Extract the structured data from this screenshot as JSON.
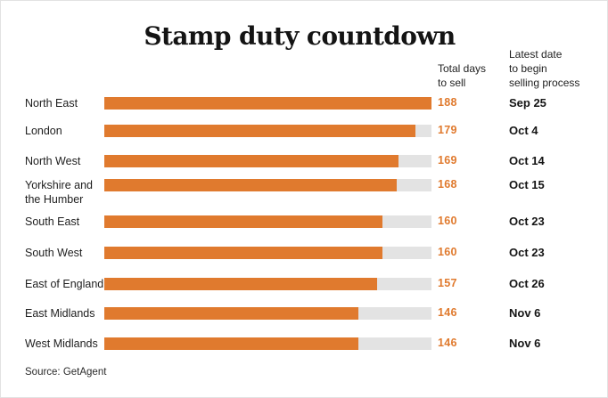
{
  "chart_data": {
    "type": "bar",
    "orientation": "horizontal",
    "title": "Stamp duty countdown",
    "value_column_header": "Total days\nto sell",
    "date_column_header": "Latest date\nto begin\nselling process",
    "categories": [
      "North East",
      "London",
      "North West",
      "Yorkshire and\nthe Humber",
      "South East",
      "South West",
      "East of England",
      "East Midlands",
      "West Midlands"
    ],
    "values": [
      188,
      179,
      169,
      168,
      160,
      160,
      157,
      146,
      146
    ],
    "latest_dates": [
      "Sep 25",
      "Oct 4",
      "Oct 14",
      "Oct 15",
      "Oct 23",
      "Oct 23",
      "Oct 26",
      "Nov 6",
      "Nov 6"
    ],
    "xlim": [
      0,
      188
    ],
    "grid": false,
    "legend": "none",
    "source": "Source: GetAgent",
    "colors": {
      "bar": "#e07a2e",
      "track": "#e3e3e3",
      "value_text": "#e07a2e"
    }
  }
}
